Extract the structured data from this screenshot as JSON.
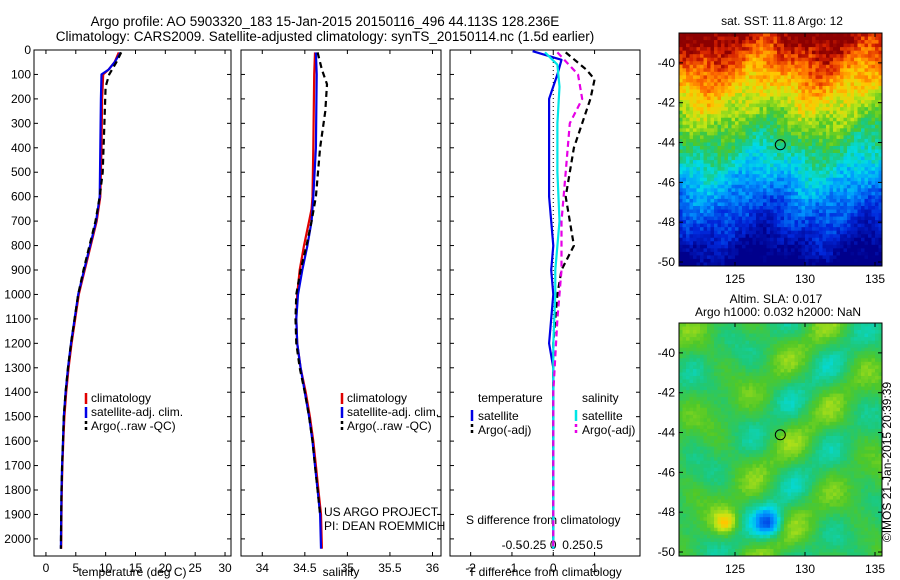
{
  "header": {
    "title_line1": "Argo profile: AO 5903320_183 15-Jan-2015 20150116_496 44.113S 128.236E",
    "title_line2": "Climatology: CARS2009. Satellite-adjusted climatology: synTS_20150114.nc (1.5d earlier)"
  },
  "colors": {
    "climatology": "#e00000",
    "satellite": "#0000e6",
    "argo": "#000000",
    "salinity_satellite": "#00e6e6",
    "salinity_argo": "#e600e6"
  },
  "chart_data": [
    {
      "type": "line",
      "id": "temperature",
      "xlabel": "temperature (deg C)",
      "ylabel": "",
      "xlim": [
        -2,
        31
      ],
      "ylim": [
        2070,
        0
      ],
      "xticks": [
        0,
        5,
        10,
        15,
        20,
        25,
        30
      ],
      "yticks": [
        0,
        100,
        200,
        300,
        400,
        500,
        600,
        700,
        800,
        900,
        1000,
        1100,
        1200,
        1300,
        1400,
        1500,
        1600,
        1700,
        1800,
        1900,
        2000
      ],
      "legend": [
        "climatology",
        "satellite-adj. clim.",
        "Argo(..raw -QC)"
      ],
      "series": [
        {
          "name": "climatology",
          "style": "solid",
          "x": [
            12.2,
            11.5,
            10.5,
            9.6,
            9.4,
            9.3,
            9.1,
            8.5,
            7.5,
            6.5,
            5.5,
            4.9,
            4.3,
            3.8,
            3.4,
            3.1,
            2.9,
            2.75,
            2.65,
            2.6,
            2.55
          ],
          "y": [
            10,
            50,
            80,
            100,
            200,
            400,
            600,
            700,
            800,
            900,
            1000,
            1100,
            1200,
            1300,
            1400,
            1500,
            1600,
            1700,
            1800,
            1900,
            2040
          ]
        },
        {
          "name": "satellite-adj. clim.",
          "style": "solid",
          "x": [
            12.5,
            11.5,
            10.5,
            9.3,
            9.2,
            9.1,
            9.0,
            8.4,
            7.4,
            6.4,
            5.4,
            4.8,
            4.2,
            3.7,
            3.3,
            3.0,
            2.85,
            2.7,
            2.6,
            2.55,
            2.5
          ],
          "y": [
            10,
            50,
            80,
            100,
            200,
            400,
            600,
            700,
            800,
            900,
            1000,
            1100,
            1200,
            1300,
            1400,
            1500,
            1600,
            1700,
            1800,
            1900,
            2040
          ]
        },
        {
          "name": "Argo(..raw -QC)",
          "style": "dashed",
          "x": [
            12.6,
            11.8,
            10.6,
            10.0,
            9.8,
            9.5,
            9.0,
            8.3,
            7.3,
            6.3,
            5.4,
            4.8,
            4.2,
            3.7,
            3.3,
            3.0,
            2.85,
            2.7,
            2.6,
            2.55,
            2.5
          ],
          "y": [
            10,
            50,
            100,
            150,
            300,
            500,
            600,
            700,
            800,
            900,
            1000,
            1100,
            1200,
            1300,
            1400,
            1500,
            1600,
            1700,
            1800,
            1900,
            2040
          ]
        }
      ]
    },
    {
      "type": "line",
      "id": "salinity",
      "xlabel": "salinity",
      "xlim": [
        33.75,
        36.1
      ],
      "ylim": [
        2070,
        0
      ],
      "xticks": [
        34,
        34.5,
        35,
        35.5,
        36
      ],
      "legend": [
        "climatology",
        "satellite-adj. clim.",
        "Argo(..raw -QC)"
      ],
      "annotation": [
        "US ARGO PROJECT",
        "PI: DEAN ROEMMICH"
      ],
      "series": [
        {
          "name": "climatology",
          "style": "solid",
          "x": [
            34.62,
            34.61,
            34.6,
            34.59,
            34.58,
            34.55,
            34.49,
            34.44,
            34.41,
            34.4,
            34.41,
            34.45,
            34.51,
            34.56,
            34.6,
            34.63,
            34.66,
            34.69,
            34.7
          ],
          "y": [
            10,
            100,
            400,
            600,
            650,
            700,
            800,
            900,
            1000,
            1100,
            1200,
            1300,
            1400,
            1500,
            1600,
            1700,
            1800,
            1900,
            2040
          ]
        },
        {
          "name": "satellite-adj. clim.",
          "style": "solid",
          "x": [
            34.63,
            34.64,
            34.63,
            34.6,
            34.58,
            34.53,
            34.47,
            34.42,
            34.4,
            34.41,
            34.45,
            34.5,
            34.55,
            34.59,
            34.62,
            34.65,
            34.68,
            34.69
          ],
          "y": [
            10,
            100,
            400,
            600,
            700,
            800,
            900,
            1000,
            1100,
            1200,
            1300,
            1400,
            1500,
            1600,
            1700,
            1800,
            1900,
            2040
          ]
        },
        {
          "name": "Argo(..raw -QC)",
          "style": "dashed",
          "x": [
            34.65,
            34.7,
            34.76,
            34.74,
            34.68,
            34.63,
            34.58,
            34.52,
            34.45,
            34.4,
            34.39,
            34.4,
            34.44,
            34.5,
            34.55,
            34.59,
            34.62,
            34.65,
            34.68
          ],
          "y": [
            10,
            80,
            140,
            250,
            400,
            600,
            700,
            800,
            900,
            1000,
            1100,
            1200,
            1300,
            1400,
            1500,
            1600,
            1700,
            1800,
            1900
          ]
        }
      ]
    },
    {
      "type": "line",
      "id": "difference",
      "xlabel": "T difference from climatology",
      "xlabel_top": "S difference from climatology",
      "xlim": [
        -2.5,
        2.1
      ],
      "ylim": [
        2070,
        0
      ],
      "xticks_bottom": [
        -2,
        -1,
        0,
        1
      ],
      "xticks_top": [
        -0.5,
        -0.25,
        0,
        0.25,
        0.5
      ],
      "legend": [
        "temperature",
        "satellite",
        "Argo(-adj)",
        "salinity",
        "satellite",
        "Argo(-adj)"
      ],
      "series": [
        {
          "name": "temperature satellite",
          "style": "solid",
          "x": [
            -0.5,
            0.2,
            0.1,
            -0.1,
            -0.1,
            -0.1,
            -0.05,
            0.0,
            -0.05,
            0.0,
            -0.05,
            -0.1,
            0.0,
            0.0,
            0.0,
            0.0,
            0.0,
            0.0
          ],
          "y": [
            5,
            40,
            100,
            200,
            400,
            600,
            700,
            800,
            900,
            1000,
            1100,
            1200,
            1300,
            1400,
            1500,
            1600,
            1800,
            2040
          ]
        },
        {
          "name": "temperature Argo(-adj)",
          "style": "dashed",
          "x": [
            0.3,
            0.8,
            1.0,
            0.9,
            0.5,
            0.3,
            0.4,
            0.5,
            0.2,
            0.1,
            0.05,
            0.0,
            0.0,
            0.0,
            0.0,
            0.0
          ],
          "y": [
            10,
            80,
            120,
            200,
            400,
            600,
            700,
            800,
            900,
            1000,
            1100,
            1200,
            1300,
            1500,
            1800,
            2040
          ]
        },
        {
          "name": "salinity satellite",
          "style": "solid",
          "x": [
            -0.2,
            0.1,
            0.15,
            0.1,
            0.1,
            0.15,
            0.1,
            0.05,
            0.05,
            0.0,
            0.0,
            0.0,
            0.0,
            0.0
          ],
          "y": [
            10,
            60,
            150,
            300,
            500,
            700,
            800,
            900,
            1000,
            1200,
            1400,
            1600,
            1800,
            2040
          ]
        },
        {
          "name": "salinity Argo(-adj)",
          "style": "dashed",
          "x": [
            0.1,
            0.6,
            0.7,
            0.4,
            0.3,
            0.2,
            0.2,
            0.1,
            0.0,
            0.0
          ],
          "y": [
            10,
            100,
            200,
            300,
            500,
            700,
            900,
            1100,
            1400,
            2040
          ]
        }
      ]
    },
    {
      "type": "heatmap",
      "id": "sst",
      "title": "sat. SST: 11.8 Argo: 12",
      "xlim": [
        121,
        135.5
      ],
      "ylim": [
        -50.2,
        -38.5
      ],
      "xticks": [
        125,
        130,
        135
      ],
      "yticks": [
        -40,
        -42,
        -44,
        -46,
        -48,
        -50
      ],
      "marker": {
        "x": 128.236,
        "y": -44.113
      }
    },
    {
      "type": "heatmap",
      "id": "sla",
      "title_line1": "Altim. SLA: 0.017",
      "title_line2": "Argo h1000: 0.032 h2000: NaN",
      "xlim": [
        121,
        135.5
      ],
      "ylim": [
        -50.2,
        -38.5
      ],
      "xticks": [
        125,
        130,
        135
      ],
      "yticks": [
        -40,
        -42,
        -44,
        -46,
        -48,
        -50
      ],
      "marker": {
        "x": 128.236,
        "y": -44.113
      }
    }
  ],
  "footer": {
    "credit": "©IMOS 21-Jan-2015 20:39:39"
  }
}
